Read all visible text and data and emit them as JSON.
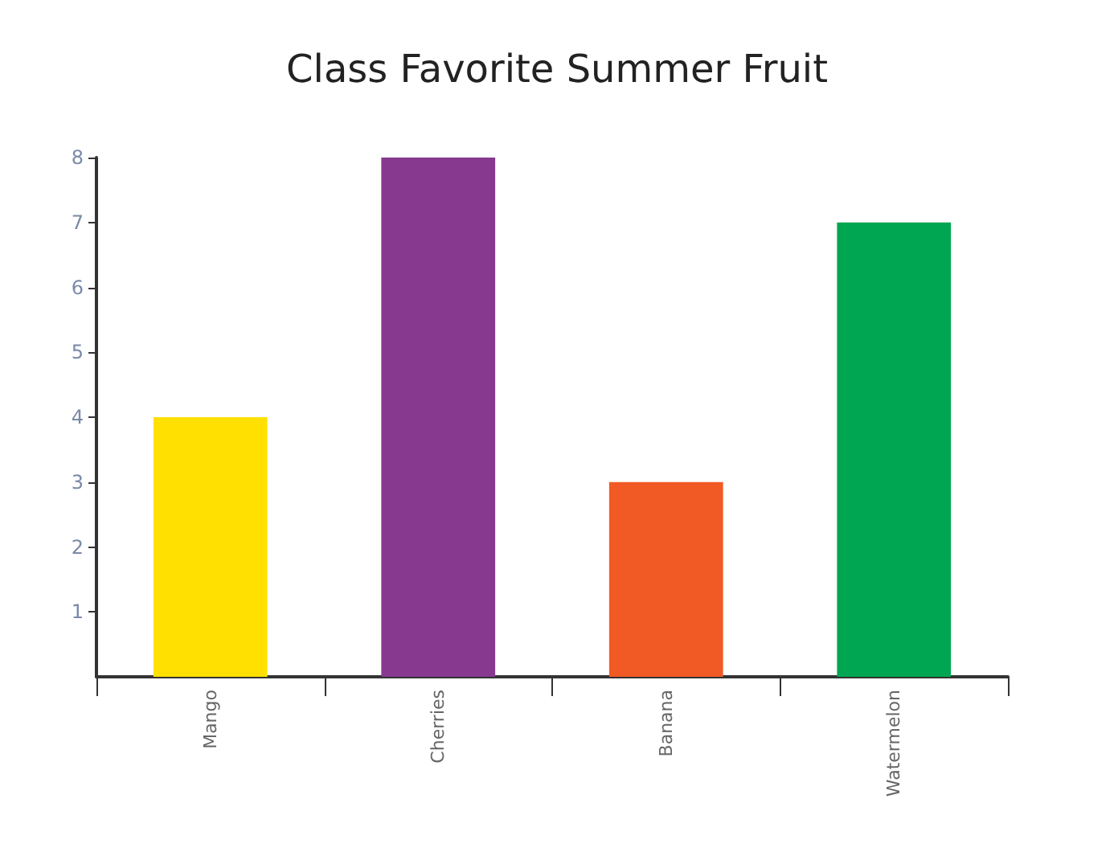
{
  "chart_data": {
    "type": "bar",
    "title": "Class Favorite Summer Fruit",
    "categories": [
      "Mango",
      "Cherries",
      "Banana",
      "Watermelon"
    ],
    "values": [
      4,
      8,
      3,
      7
    ],
    "colors": [
      "#ffe000",
      "#87398f",
      "#f15a24",
      "#00a651"
    ],
    "ylim": [
      0,
      8
    ],
    "yticks": [
      1,
      2,
      3,
      4,
      5,
      6,
      7,
      8
    ],
    "grid": false
  }
}
